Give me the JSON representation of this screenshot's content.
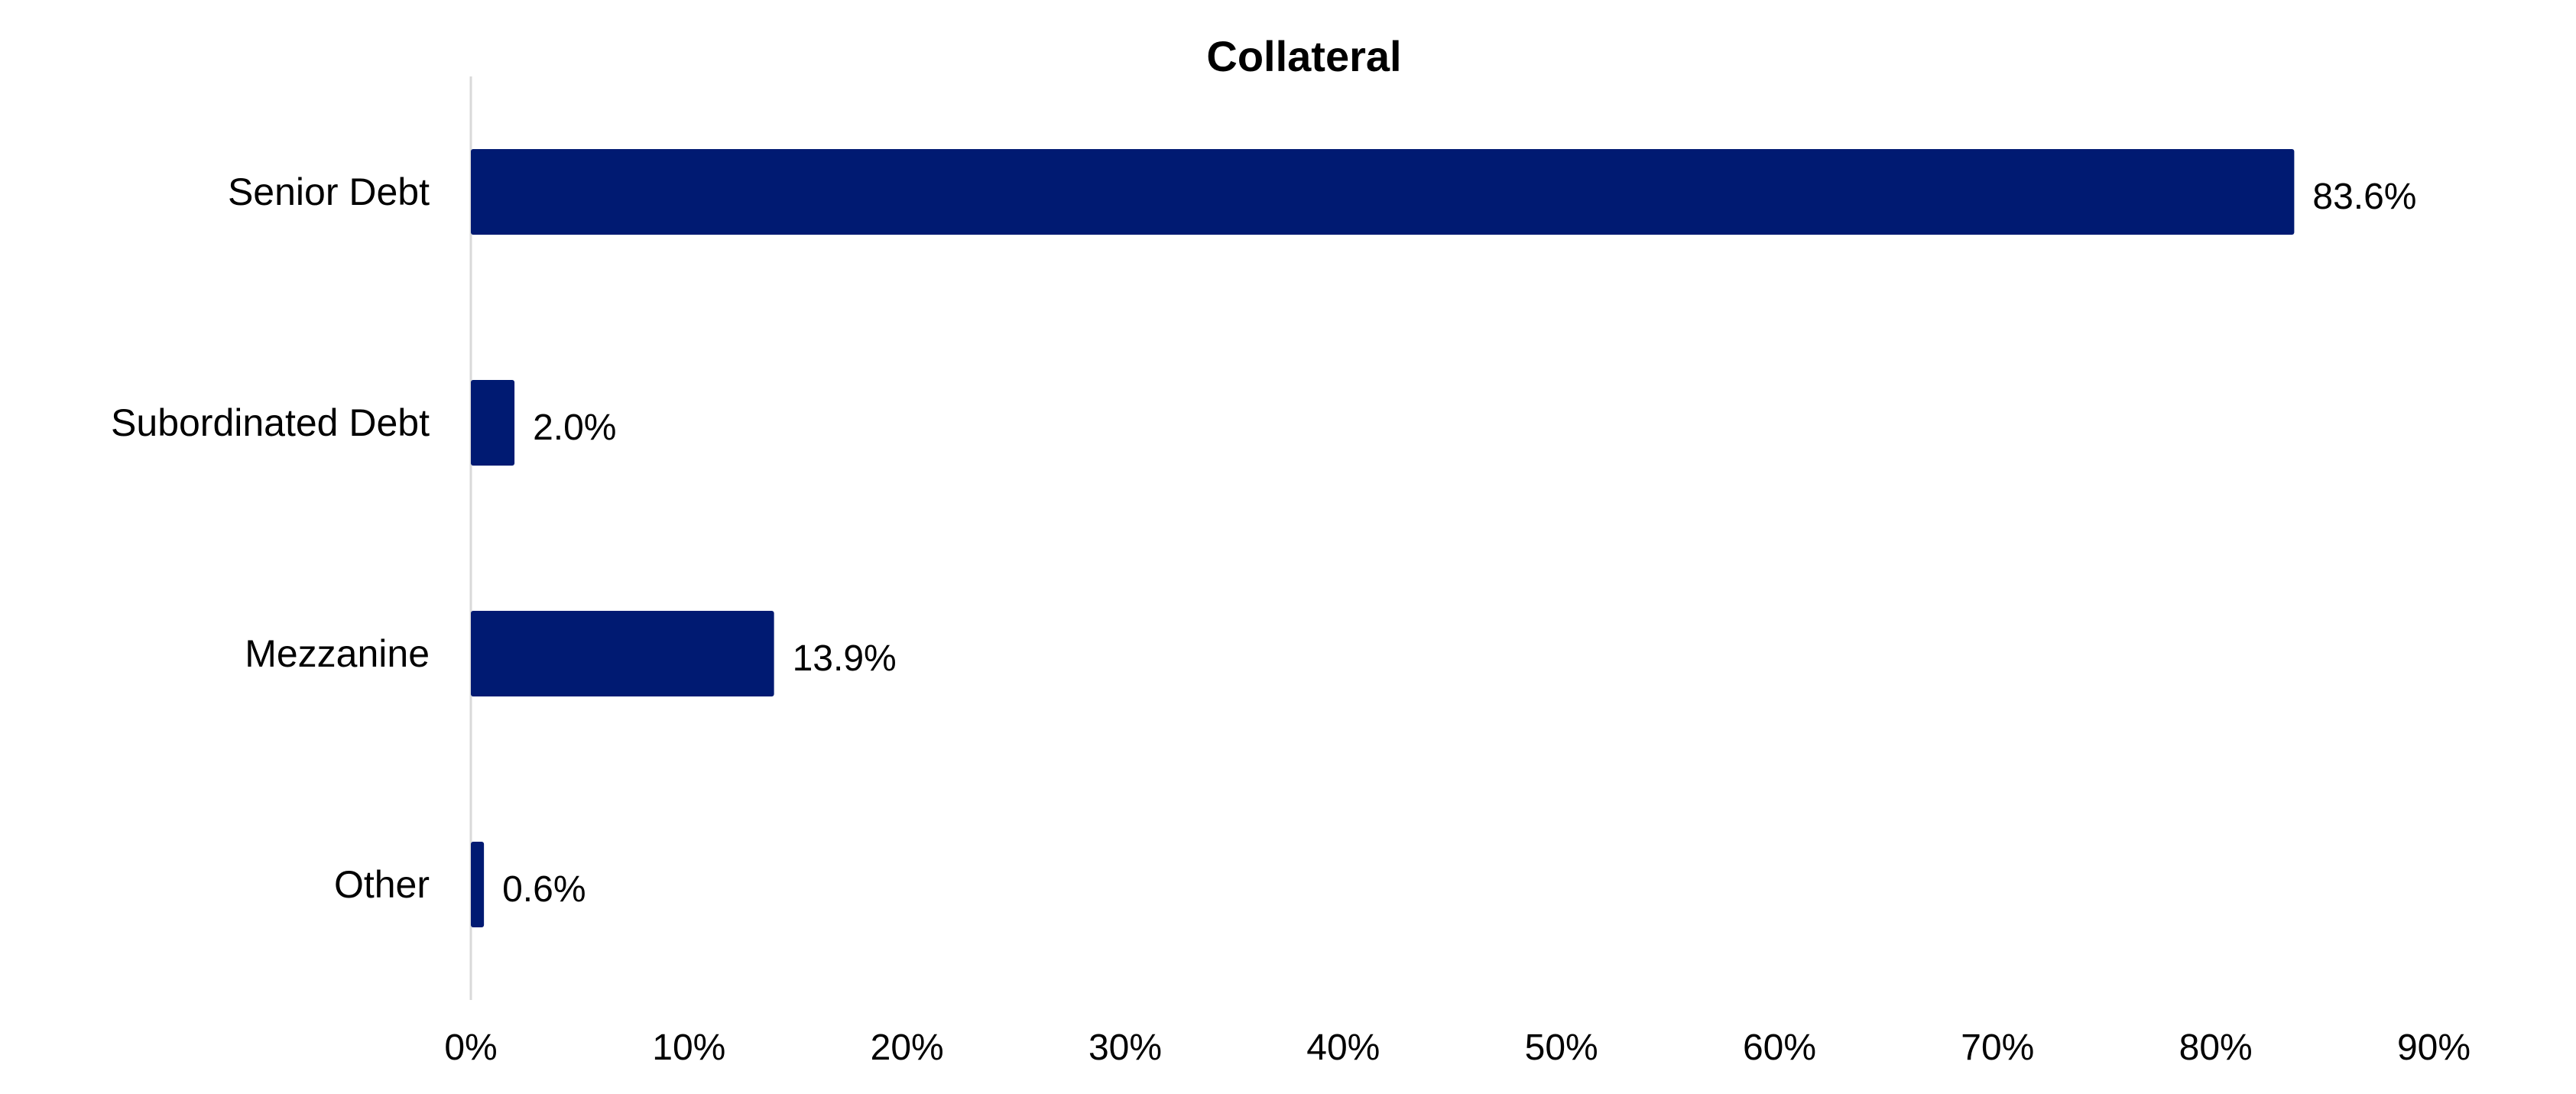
{
  "chart_data": {
    "type": "bar",
    "orientation": "horizontal",
    "title": "Collateral",
    "xlabel": "",
    "ylabel": "",
    "categories": [
      "Senior Debt",
      "Subordinated Debt",
      "Mezzanine",
      "Other"
    ],
    "values": [
      83.6,
      2.0,
      13.9,
      0.6
    ],
    "data_labels": [
      "83.6%",
      "2.0%",
      "13.9%",
      "0.6%"
    ],
    "xlim": [
      0,
      90
    ],
    "x_ticks": [
      0,
      10,
      20,
      30,
      40,
      50,
      60,
      70,
      80,
      90
    ],
    "x_tick_labels": [
      "0%",
      "10%",
      "20%",
      "30%",
      "40%",
      "50%",
      "60%",
      "70%",
      "80%",
      "90%"
    ],
    "grid": false,
    "legend": "none",
    "bar_color": "#001a72",
    "axis_color": "#d9d9d9"
  }
}
